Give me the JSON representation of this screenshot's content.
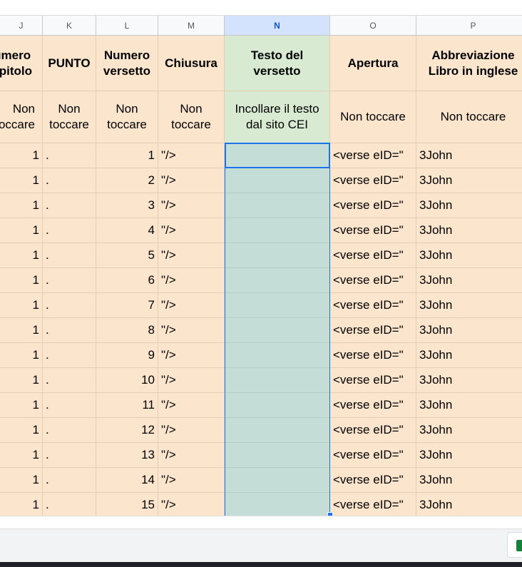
{
  "columns": [
    {
      "letter": "J",
      "header": "Numero\nCapitolo",
      "sub": "Non\ntoccare"
    },
    {
      "letter": "K",
      "header": "PUNTO",
      "sub": "Non\ntoccare"
    },
    {
      "letter": "L",
      "header": "Numero\nversetto",
      "sub": "Non\ntoccare"
    },
    {
      "letter": "M",
      "header": "Chiusura",
      "sub": "Non\ntoccare"
    },
    {
      "letter": "N",
      "header": "Testo del\nversetto",
      "sub": "Incollare il testo\ndal sito CEI"
    },
    {
      "letter": "O",
      "header": "Apertura",
      "sub": "Non toccare"
    },
    {
      "letter": "P",
      "header": "Abbreviazione\nLibro in inglese",
      "sub": "Non toccare"
    }
  ],
  "rows": [
    {
      "capitolo": "1",
      "punto": ".",
      "versetto": "1",
      "chiusura": "\"/>",
      "testo": "",
      "apertura": "<verse eID=\"",
      "libro": "3John"
    },
    {
      "capitolo": "1",
      "punto": ".",
      "versetto": "2",
      "chiusura": "\"/>",
      "testo": "",
      "apertura": "<verse eID=\"",
      "libro": "3John"
    },
    {
      "capitolo": "1",
      "punto": ".",
      "versetto": "3",
      "chiusura": "\"/>",
      "testo": "",
      "apertura": "<verse eID=\"",
      "libro": "3John"
    },
    {
      "capitolo": "1",
      "punto": ".",
      "versetto": "4",
      "chiusura": "\"/>",
      "testo": "",
      "apertura": "<verse eID=\"",
      "libro": "3John"
    },
    {
      "capitolo": "1",
      "punto": ".",
      "versetto": "5",
      "chiusura": "\"/>",
      "testo": "",
      "apertura": "<verse eID=\"",
      "libro": "3John"
    },
    {
      "capitolo": "1",
      "punto": ".",
      "versetto": "6",
      "chiusura": "\"/>",
      "testo": "",
      "apertura": "<verse eID=\"",
      "libro": "3John"
    },
    {
      "capitolo": "1",
      "punto": ".",
      "versetto": "7",
      "chiusura": "\"/>",
      "testo": "",
      "apertura": "<verse eID=\"",
      "libro": "3John"
    },
    {
      "capitolo": "1",
      "punto": ".",
      "versetto": "8",
      "chiusura": "\"/>",
      "testo": "",
      "apertura": "<verse eID=\"",
      "libro": "3John"
    },
    {
      "capitolo": "1",
      "punto": ".",
      "versetto": "9",
      "chiusura": "\"/>",
      "testo": "",
      "apertura": "<verse eID=\"",
      "libro": "3John"
    },
    {
      "capitolo": "1",
      "punto": ".",
      "versetto": "10",
      "chiusura": "\"/>",
      "testo": "",
      "apertura": "<verse eID=\"",
      "libro": "3John"
    },
    {
      "capitolo": "1",
      "punto": ".",
      "versetto": "11",
      "chiusura": "\"/>",
      "testo": "",
      "apertura": "<verse eID=\"",
      "libro": "3John"
    },
    {
      "capitolo": "1",
      "punto": ".",
      "versetto": "12",
      "chiusura": "\"/>",
      "testo": "",
      "apertura": "<verse eID=\"",
      "libro": "3John"
    },
    {
      "capitolo": "1",
      "punto": ".",
      "versetto": "13",
      "chiusura": "\"/>",
      "testo": "",
      "apertura": "<verse eID=\"",
      "libro": "3John"
    },
    {
      "capitolo": "1",
      "punto": ".",
      "versetto": "14",
      "chiusura": "\"/>",
      "testo": "",
      "apertura": "<verse eID=\"",
      "libro": "3John"
    },
    {
      "capitolo": "1",
      "punto": ".",
      "versetto": "15",
      "chiusura": "\"/>",
      "testo": "",
      "apertura": "<verse eID=\"",
      "libro": "3John"
    }
  ],
  "selected_column": "N",
  "colors": {
    "cell_fill": "#fce5cd",
    "header_green": "#d9ead3",
    "paste_column": "#c5ddd7",
    "selection": "#1a73e8"
  },
  "icons": {
    "add_sheet": "add-sheet-icon"
  }
}
